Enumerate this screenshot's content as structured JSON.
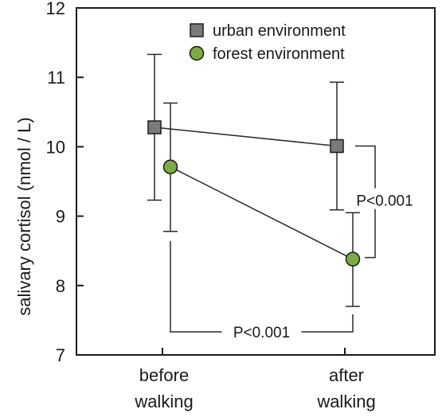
{
  "chart_data": {
    "type": "line",
    "title": "",
    "xlabel": "",
    "ylabel": "salivary cortisol (nmol / L)",
    "categories": [
      "before\nwalking",
      "after\nwalking"
    ],
    "ylim": [
      7,
      12
    ],
    "yticks": [
      7,
      8,
      9,
      10,
      11,
      12
    ],
    "grid": false,
    "legend_position": "top-right",
    "series": [
      {
        "name": "urban environment",
        "marker": "square",
        "color": "#7a7a7a",
        "values": [
          10.28,
          10.01
        ],
        "error_upper": [
          11.33,
          10.93
        ],
        "error_lower": [
          9.23,
          9.09
        ]
      },
      {
        "name": "forest environment",
        "marker": "circle",
        "color": "#7cab45",
        "values": [
          9.71,
          8.38
        ],
        "error_upper": [
          10.63,
          9.05
        ],
        "error_lower": [
          8.78,
          7.7
        ]
      }
    ],
    "annotations": [
      {
        "text": "P<0.001",
        "between": "after walking urban vs forest"
      },
      {
        "text": "P<0.001",
        "between": "before vs after walking forest"
      }
    ]
  },
  "colors": {
    "axis": "#1a1a1a",
    "line": "#2a2a2a",
    "square_fill": "#7a7a7a",
    "circle_fill": "#7cab45"
  }
}
